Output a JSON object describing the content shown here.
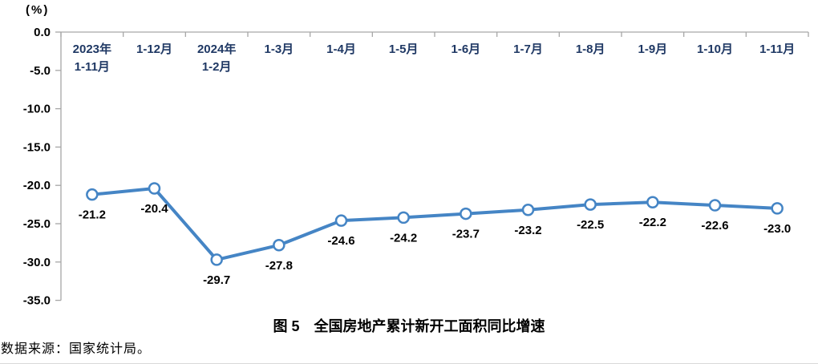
{
  "chart": {
    "unit_label": "(%)"
  },
  "chart_data": {
    "type": "line",
    "title": "图 5  全国房地产累计新开工面积同比增速",
    "xlabel": "",
    "ylabel": "(%)",
    "categories": [
      "2023年\n1-11月",
      "1-12月",
      "2024年\n1-2月",
      "1-3月",
      "1-4月",
      "1-5月",
      "1-6月",
      "1-7月",
      "1-8月",
      "1-9月",
      "1-10月",
      "1-11月"
    ],
    "values": [
      -21.2,
      -20.4,
      -29.7,
      -27.8,
      -24.6,
      -24.2,
      -23.7,
      -23.2,
      -22.5,
      -22.2,
      -22.6,
      -23.0
    ],
    "data_labels": [
      "-21.2",
      "-20.4",
      "-29.7",
      "-27.8",
      "-24.6",
      "-24.2",
      "-23.7",
      "-23.2",
      "-22.5",
      "-22.2",
      "-22.6",
      "-23.0"
    ],
    "ylim": [
      -35,
      0
    ],
    "ytick_step": 5,
    "ytick_labels": [
      "0.0",
      "-5.0",
      "-10.0",
      "-15.0",
      "-20.0",
      "-25.0",
      "-30.0",
      "-35.0"
    ],
    "grid": "off",
    "legend": "none",
    "colors": {
      "line": "#4585c5",
      "marker_fill": "#ffffff",
      "axis": "#a6a6a6",
      "category_label": "#1f3864",
      "value_label": "#000000",
      "ytick_label": "#000000"
    }
  },
  "caption": {
    "figure_label": "图 5",
    "title": "全国房地产累计新开工面积同比增速"
  },
  "source_note": "数据来源：国家统计局。"
}
